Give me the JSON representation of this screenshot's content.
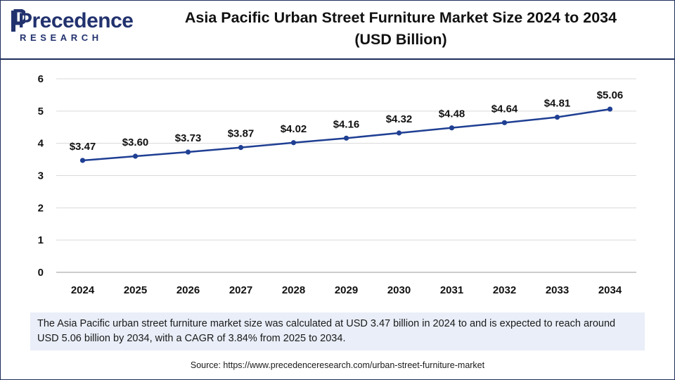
{
  "brand": {
    "name": "Precedence",
    "sub": "RESEARCH"
  },
  "title": {
    "line1": "Asia Pacific Urban Street Furniture Market Size 2024 to 2034",
    "line2": "(USD Billion)"
  },
  "colors": {
    "line": "#1f3f93",
    "brand": "#22326e",
    "summary_bg": "#e9eef8",
    "grid": "#d9d9d9"
  },
  "chart_data": {
    "type": "line",
    "title": "Asia Pacific Urban Street Furniture Market Size 2024 to 2034 (USD Billion)",
    "xlabel": "",
    "ylabel": "",
    "categories": [
      "2024",
      "2025",
      "2026",
      "2027",
      "2028",
      "2029",
      "2030",
      "2031",
      "2032",
      "2033",
      "2034"
    ],
    "values": [
      3.47,
      3.6,
      3.73,
      3.87,
      4.02,
      4.16,
      4.32,
      4.48,
      4.64,
      4.81,
      5.06
    ],
    "labels": [
      "$3.47",
      "$3.60",
      "$3.73",
      "$3.87",
      "$4.02",
      "$4.16",
      "$4.32",
      "$4.48",
      "$4.64",
      "$4.81",
      "$5.06"
    ],
    "yticks": [
      0,
      1,
      2,
      3,
      4,
      5,
      6
    ],
    "ylim": [
      0,
      6
    ],
    "grid": true,
    "legend": "none"
  },
  "summary": "The Asia Pacific urban street furniture market size was calculated at USD 3.47 billion in 2024 to and is expected to reach around USD 5.06 billion by 2034, with a CAGR of 3.84% from 2025 to 2034.",
  "source": "Source: https://www.precedenceresearch.com/urban-street-furniture-market"
}
